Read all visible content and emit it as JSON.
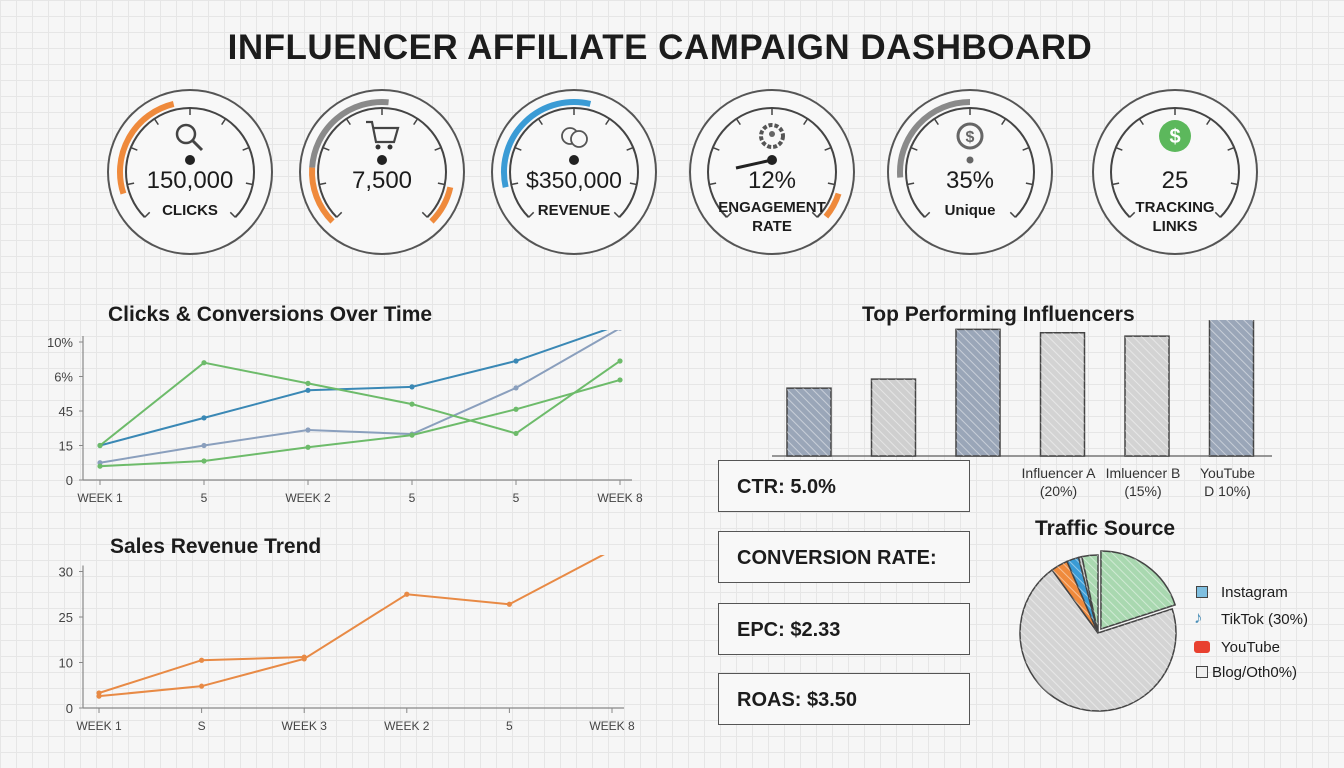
{
  "title": "INFLUENCER AFFILIATE CAMPAIGN DASHBOARD",
  "gauges": [
    {
      "value": "150,000",
      "label": [
        "CLICKS"
      ],
      "icon": "search-icon",
      "arcs": [
        {
          "from": 0.1,
          "to": 0.45,
          "color": "#ef8a3c"
        }
      ]
    },
    {
      "value": "7,500",
      "label": [],
      "icon": "cart-icon",
      "arcs": [
        {
          "from": 0.0,
          "to": 0.18,
          "color": "#ef8a3c"
        },
        {
          "from": 0.18,
          "to": 0.52,
          "color": "#8a8a8a"
        },
        {
          "from": 0.88,
          "to": 1.0,
          "color": "#ef8a3c"
        }
      ]
    },
    {
      "value": "$350,000",
      "label": [
        "REVENUE"
      ],
      "icon": "apple-icon",
      "arcs": [
        {
          "from": 0.12,
          "to": 0.55,
          "color": "#3a9bd5"
        }
      ]
    },
    {
      "value": "12%",
      "label": [
        "ENGAGEMENT",
        "RATE"
      ],
      "icon": "gear-user-icon",
      "needle": 0.12,
      "arcs": [
        {
          "from": 0.9,
          "to": 0.98,
          "color": "#ef8a3c"
        }
      ]
    },
    {
      "value": "35%",
      "label": [
        "Unique"
      ],
      "icon": "dollar-circle-icon",
      "arcs": [
        {
          "from": 0.15,
          "to": 0.5,
          "color": "#8a8a8a"
        }
      ]
    },
    {
      "value": "25",
      "label": [
        "TRACKING",
        "LINKS"
      ],
      "icon": "dollar-green-icon",
      "arcs": []
    }
  ],
  "chart_data": [
    {
      "type": "line",
      "title": "Clicks & Conversions Over Time",
      "categories": [
        "WEEK 1",
        "5",
        "WEEK 2",
        "5",
        "5",
        "WEEK 8"
      ],
      "y_ticks": [
        "0",
        "15",
        "45",
        "6%",
        "10%"
      ],
      "y_scale_note": "values expressed in tick steps (0 = first tick label, 4 = last)",
      "series": [
        {
          "color": "#3a88b5",
          "values": [
            1.0,
            1.8,
            2.6,
            2.7,
            3.45,
            4.5
          ]
        },
        {
          "color": "#8a9fbd",
          "values": [
            0.5,
            1.0,
            1.45,
            1.33,
            2.67,
            4.4
          ]
        },
        {
          "color": "#6dbb6a",
          "values": [
            1.0,
            3.4,
            2.8,
            2.2,
            1.35,
            3.45
          ]
        },
        {
          "color": "#6dbb6a",
          "values": [
            0.4,
            0.55,
            0.95,
            1.3,
            2.05,
            2.9
          ]
        }
      ],
      "grid": false
    },
    {
      "type": "line",
      "title": "Sales Revenue Trend",
      "categories": [
        "WEEK 1",
        "S",
        "WEEK 3",
        "WEEK 2",
        "5",
        "WEEK 8"
      ],
      "y_ticks": [
        "0",
        "10",
        "25",
        "30"
      ],
      "y_scale_note": "values expressed in tick steps (0 = first tick label, 3 = last)",
      "series": [
        {
          "color": "#e88a45",
          "values": [
            0.33,
            1.05,
            1.12,
            null,
            null,
            null
          ]
        },
        {
          "color": "#e88a45",
          "values": [
            0.26,
            0.48,
            1.08,
            2.5,
            2.28,
            3.47
          ]
        }
      ],
      "grid": false
    },
    {
      "type": "bar",
      "title": "Top Performing Influencers",
      "categories": [
        "",
        "",
        "",
        "Influencer A (20%)",
        "Imluencer B (15%)",
        "YouTube D 10%)"
      ],
      "label_lines": [
        [],
        [],
        [],
        [
          "Influencer A",
          "(20%)"
        ],
        [
          "Imluencer B",
          "(15%)"
        ],
        [
          "YouTube",
          "D  10%)"
        ]
      ],
      "values": [
        60,
        68,
        112,
        109,
        106,
        126
      ],
      "colors": [
        "#9aa6b8",
        "#cfcfcf",
        "#9aa6b8",
        "#d3d3d3",
        "#d3d3d3",
        "#9aa6b8"
      ],
      "ylim": [
        0,
        130
      ]
    },
    {
      "type": "pie",
      "title": "Traffic Source",
      "slices": [
        {
          "value": 20,
          "color": "#a9d8b0",
          "exploded": true
        },
        {
          "value": 70,
          "color": "#d4d4d4"
        },
        {
          "value": 3.5,
          "color": "#ef8a3c"
        },
        {
          "value": 2.5,
          "color": "#3a9bd5"
        },
        {
          "value": 0.7,
          "color": "#cfcfcf"
        },
        {
          "value": 3.3,
          "color": "#a9d8b0"
        }
      ],
      "legend": [
        {
          "label": "Instagram",
          "icon": "square-icon",
          "color": "#7fbfe0"
        },
        {
          "label": "TikTok (30%)",
          "icon": "tiktok-icon",
          "color": "#5aa0c8"
        },
        {
          "label": "YouTube",
          "icon": "youtube-icon",
          "color": "#e8402f"
        },
        {
          "label": "Blog/Oth0%)",
          "icon": "square-icon",
          "color": "#eeeeee"
        }
      ],
      "legend_position": "right"
    }
  ],
  "kpis": [
    "CTR: 5.0%",
    "CONVERSION RATE:",
    "EPC: $2.33",
    "ROAS: $3.50"
  ]
}
